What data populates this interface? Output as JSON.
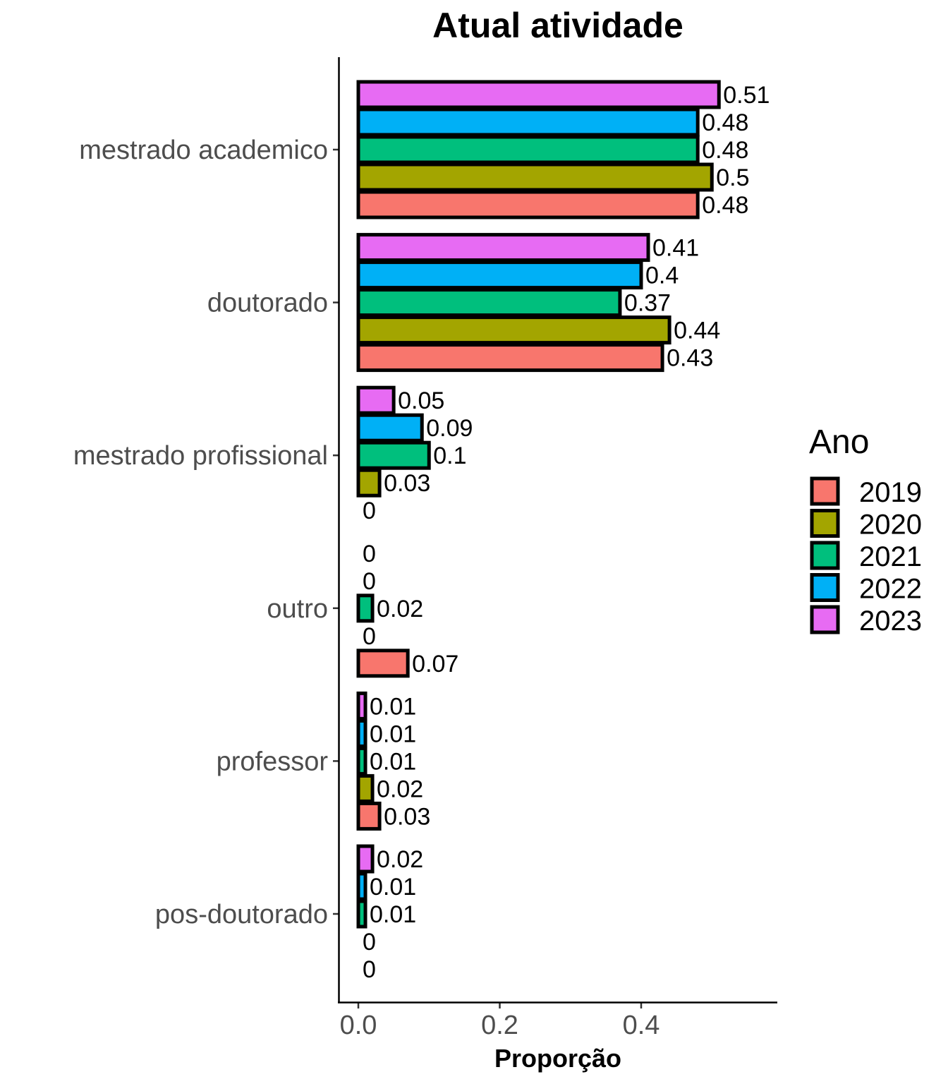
{
  "chart_data": {
    "type": "bar",
    "orientation": "horizontal",
    "title": "Atual atividade",
    "xlabel": "Proporção",
    "ylabel": "",
    "xlim": [
      0,
      0.58
    ],
    "x_ticks": [
      0.0,
      0.2,
      0.4
    ],
    "x_tick_labels": [
      "0.0",
      "0.2",
      "0.4"
    ],
    "grid": false,
    "legend": {
      "title": "Ano",
      "position": "right"
    },
    "categories": [
      "mestrado academico",
      "doutorado",
      "mestrado profissional",
      "outro",
      "professor",
      "pos-doutorado"
    ],
    "series": [
      {
        "name": "2019",
        "color": "#F8766D",
        "values": [
          0.48,
          0.43,
          0,
          0.07,
          0.03,
          0
        ],
        "labels": [
          "0.48",
          "0.43",
          "0",
          "0.07",
          "0.03",
          "0"
        ]
      },
      {
        "name": "2020",
        "color": "#A3A500",
        "values": [
          0.5,
          0.44,
          0.03,
          0,
          0.02,
          0
        ],
        "labels": [
          "0.5",
          "0.44",
          "0.03",
          "0",
          "0.02",
          "0"
        ]
      },
      {
        "name": "2021",
        "color": "#00BF7D",
        "values": [
          0.48,
          0.37,
          0.1,
          0.02,
          0.01,
          0.01
        ],
        "labels": [
          "0.48",
          "0.37",
          "0.1",
          "0.02",
          "0.01",
          "0.01"
        ]
      },
      {
        "name": "2022",
        "color": "#00B0F6",
        "values": [
          0.48,
          0.4,
          0.09,
          0,
          0.01,
          0.01
        ],
        "labels": [
          "0.48",
          "0.4",
          "0.09",
          "0",
          "0.01",
          "0.01"
        ]
      },
      {
        "name": "2023",
        "color": "#E76BF3",
        "values": [
          0.51,
          0.41,
          0.05,
          0,
          0.01,
          0.02
        ],
        "labels": [
          "0.51",
          "0.41",
          "0.05",
          "0",
          "0.01",
          "0.02"
        ]
      }
    ]
  }
}
